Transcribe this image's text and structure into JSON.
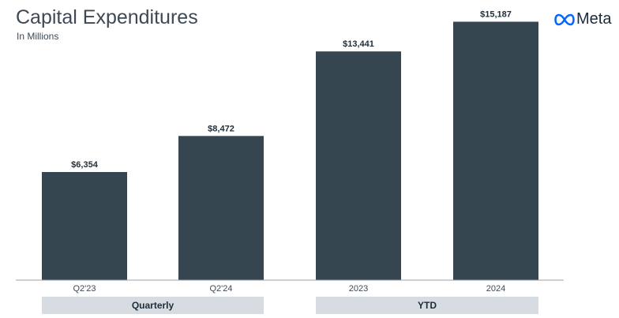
{
  "header": {
    "title": "Capital Expenditures",
    "subtitle": "In Millions",
    "logo_text": "Meta",
    "logo_icon": "meta-infinity-icon"
  },
  "colors": {
    "bar": "#354650",
    "group_band": "#d6dce2",
    "text": "#3d4a55"
  },
  "chart_data": {
    "type": "bar",
    "title": "Capital Expenditures",
    "subtitle": "In Millions",
    "categories": [
      "Q2'23",
      "Q2'24",
      "2023",
      "2024"
    ],
    "values": [
      6354,
      8472,
      13441,
      15187
    ],
    "value_labels": [
      "$6,354",
      "$8,472",
      "$13,441",
      "$15,187"
    ],
    "groups": [
      {
        "label": "Quarterly",
        "categories": [
          "Q2'23",
          "Q2'24"
        ]
      },
      {
        "label": "YTD",
        "categories": [
          "2023",
          "2024"
        ]
      }
    ],
    "ylim": [
      0,
      16000
    ],
    "grid": false,
    "legend": "none"
  }
}
